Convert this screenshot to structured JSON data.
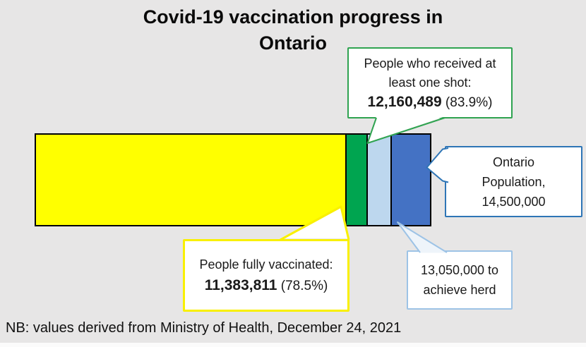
{
  "title": {
    "line1": "Covid-19 vaccination progress in",
    "line2": "Ontario"
  },
  "note": "NB: values derived from Ministry of Health, December 24, 2021",
  "callouts": {
    "one_shot": {
      "line1": "People who received at",
      "line2": "least one shot:",
      "value": "12,160,489",
      "pct": " (83.9%)"
    },
    "fully": {
      "label": "People fully vaccinated:",
      "value": "11,383,811",
      "pct": " (78.5%)"
    },
    "population": {
      "line1": "Ontario",
      "line2": "Population,",
      "line3": "14,500,000"
    },
    "herd": {
      "line1": "13,050,000 to",
      "line2": "achieve herd"
    }
  },
  "colors": {
    "background": "#E7E6E6",
    "bar_yellow": "#FFFF00",
    "bar_green": "#00A550",
    "bar_lightblue": "#BDD7EE",
    "bar_blue": "#4472C4",
    "green_border": "#2FA350",
    "blue_border": "#2E75B6",
    "lightblue_border": "#9DC3E6",
    "yellow_border": "#F9F000"
  },
  "chart_data": {
    "type": "bar",
    "orientation": "horizontal-stacked",
    "title": "Covid-19 vaccination progress in Ontario",
    "total_population": 14500000,
    "herd_threshold": 13050000,
    "fully_vaccinated": 11383811,
    "at_least_one_shot": 12160489,
    "segments": [
      {
        "key": "fully-vaccinated",
        "label": "People fully vaccinated",
        "value": 11383811,
        "pct_of_population": 78.5,
        "color": "#FFFF00"
      },
      {
        "key": "one-shot-additional",
        "label": "Additional people with at least one shot (cumulative 12,160,489 = 83.9%)",
        "value": 776678,
        "pct_of_population": 5.4,
        "color": "#00A550"
      },
      {
        "key": "herd-gap",
        "label": "Gap to herd-immunity threshold of 13,050,000",
        "value": 889511,
        "pct_of_population": 6.1,
        "color": "#BDD7EE"
      },
      {
        "key": "population-remainder",
        "label": "Remainder of Ontario population of 14,500,000",
        "value": 1450000,
        "pct_of_population": 10.0,
        "color": "#4472C4"
      }
    ],
    "annotations": [
      {
        "target": "cumulative one-shot mark",
        "text": "People who received at least one shot: 12,160,489 (83.9%)"
      },
      {
        "target": "fully vaccinated segment",
        "text": "People fully vaccinated: 11,383,811 (78.5%)"
      },
      {
        "target": "herd threshold mark",
        "text": "13,050,000 to achieve herd"
      },
      {
        "target": "total bar length",
        "text": "Ontario Population, 14,500,000"
      }
    ],
    "footnote": "NB: values derived from Ministry of Health, December 24, 2021"
  }
}
